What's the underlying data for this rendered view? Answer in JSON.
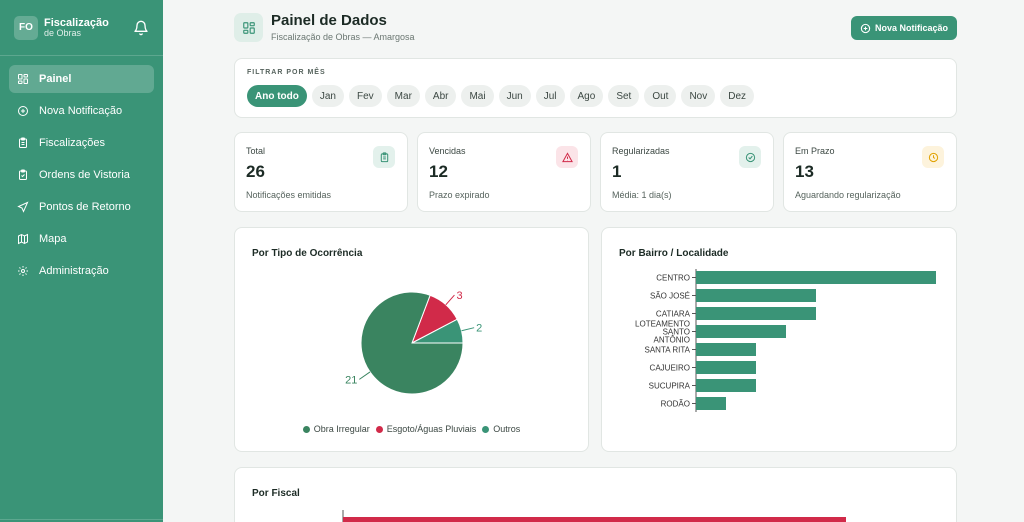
{
  "sidebar": {
    "badge": "FO",
    "title": "Fiscalização",
    "subtitle": "de Obras",
    "items": [
      {
        "label": "Painel",
        "icon": "dashboard-icon",
        "active": true
      },
      {
        "label": "Nova Notificação",
        "icon": "plus-circle-icon"
      },
      {
        "label": "Fiscalizações",
        "icon": "clipboard-icon"
      },
      {
        "label": "Ordens de Vistoria",
        "icon": "clipboard-check-icon"
      },
      {
        "label": "Pontos de Retorno",
        "icon": "send-icon"
      },
      {
        "label": "Mapa",
        "icon": "map-icon"
      },
      {
        "label": "Administração",
        "icon": "gear-icon"
      }
    ]
  },
  "header": {
    "title": "Painel de Dados",
    "subtitle": "Fiscalização de Obras — Amargosa",
    "new_button": "Nova Notificação"
  },
  "filter": {
    "label": "FILTRAR POR MÊS",
    "months": [
      "Ano todo",
      "Jan",
      "Fev",
      "Mar",
      "Abr",
      "Mai",
      "Jun",
      "Jul",
      "Ago",
      "Set",
      "Out",
      "Nov",
      "Dez"
    ],
    "selected": "Ano todo"
  },
  "stats": [
    {
      "label": "Total",
      "value": "26",
      "desc": "Notificações emitidas",
      "icon": "clipboard-icon",
      "color": "#3a9477",
      "bg": "#e3f1ec"
    },
    {
      "label": "Vencidas",
      "value": "12",
      "desc": "Prazo expirado",
      "icon": "alert-triangle-icon",
      "color": "#d12a49",
      "bg": "#fbe4e8"
    },
    {
      "label": "Regularizadas",
      "value": "1",
      "desc": "Média: 1 dia(s)",
      "icon": "check-circle-icon",
      "color": "#3a9477",
      "bg": "#e3f1ec"
    },
    {
      "label": "Em Prazo",
      "value": "13",
      "desc": "Aguardando regularização",
      "icon": "clock-icon",
      "color": "#e0a100",
      "bg": "#fdf3dc"
    }
  ],
  "charts": {
    "tipo_title": "Por Tipo de Ocorrência",
    "bairro_title": "Por Bairro / Localidade",
    "fiscal_title": "Por Fiscal"
  },
  "chart_data": [
    {
      "type": "pie",
      "title": "Por Tipo de Ocorrência",
      "categories": [
        "Obra Irregular",
        "Esgoto/Águas Pluviais",
        "Outros"
      ],
      "values": [
        21,
        3,
        2
      ],
      "colors": [
        "#3a8460",
        "#d12a49",
        "#3a9477"
      ],
      "legend": "bottom"
    },
    {
      "type": "bar",
      "orientation": "horizontal",
      "title": "Por Bairro / Localidade",
      "categories": [
        "CENTRO",
        "SÃO JOSÉ",
        "CATIARA",
        "LOTEAMENTO SANTO ANTÔNIO",
        "SANTA RITA",
        "CAJUEIRO",
        "SUCUPIRA",
        "RODÃO"
      ],
      "values": [
        8,
        4,
        4,
        3,
        2,
        2,
        2,
        1
      ],
      "color": "#3a9477"
    },
    {
      "type": "bar",
      "orientation": "horizontal",
      "title": "Por Fiscal",
      "categories": [
        ""
      ],
      "values": [
        1
      ],
      "color": "#d12a49"
    }
  ]
}
